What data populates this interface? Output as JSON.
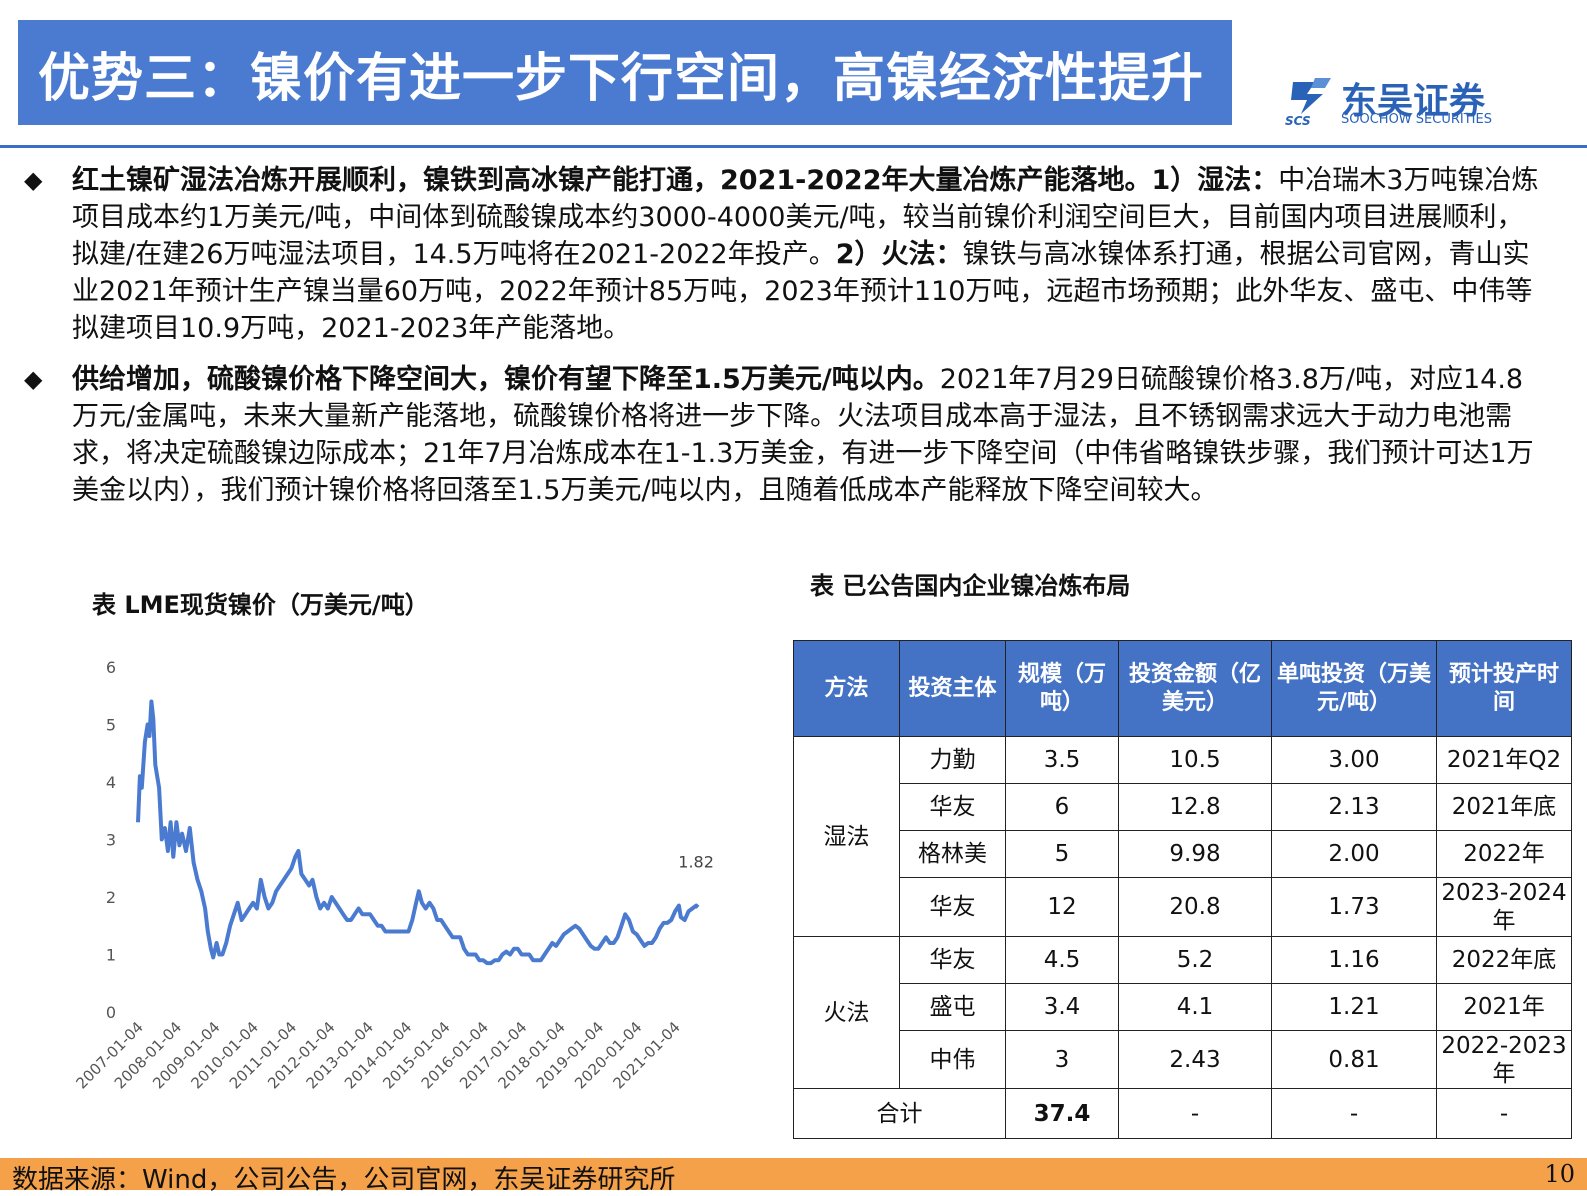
{
  "header": {
    "title": "优势三：镍价有进一步下行空间，高镍经济性提升"
  },
  "logo": {
    "cn": "东吴证券",
    "en": "SOOCHOW SECURITIES",
    "mark": "SCS",
    "icon": "scs-logo-icon"
  },
  "bullets": [
    {
      "bold": "红土镍矿湿法冶炼开展顺利，镍铁到高冰镍产能打通，2021-2022年大量冶炼产能落地。1）湿法：",
      "text1": "中冶瑞木3万吨镍冶炼项目成本约1万美元/吨，中间体到硫酸镍成本约3000-4000美元/吨，较当前镍价利润空间巨大，目前国内项目进展顺利，拟建/在建26万吨湿法项目，14.5万吨将在2021-2022年投产。",
      "bold2": "2）火法：",
      "text2": "镍铁与高冰镍体系打通，根据公司官网，青山实业2021年预计生产镍当量60万吨，2022年预计85万吨，2023年预计110万吨，远超市场预期；此外华友、盛屯、中伟等拟建项目10.9万吨，2021-2023年产能落地。"
    },
    {
      "bold": "供给增加，硫酸镍价格下降空间大，镍价有望下降至1.5万美元/吨以内。",
      "text1": "2021年7月29日硫酸镍价格3.8万/吨，对应14.8万元/金属吨，未来大量新产能落地，硫酸镍价格将进一步下降。火法项目成本高于湿法，且不锈钢需求远大于动力电池需求，将决定硫酸镍边际成本；21年7月冶炼成本在1-1.3万美金，有进一步下降空间（中伟省略镍铁步骤，我们预计可达1万美金以内），我们预计镍价格将回落至1.5万美元/吨以内，且随着低成本产能释放下降空间较大。"
    }
  ],
  "chart_data": {
    "type": "line",
    "title": "表 LME现货镍价（万美元/吨）",
    "x": [
      "2007-01-04",
      "2008-01-04",
      "2009-01-04",
      "2010-01-04",
      "2011-01-04",
      "2012-01-04",
      "2013-01-04",
      "2014-01-04",
      "2015-01-04",
      "2016-01-04",
      "2017-01-04",
      "2018-01-04",
      "2019-01-04",
      "2020-01-04",
      "2021-01-04"
    ],
    "y_ticks": [
      0,
      1,
      2,
      3,
      4,
      5,
      6
    ],
    "ylim": [
      0,
      6
    ],
    "series": [
      {
        "color": "#4a7bd0",
        "points": [
          [
            2007.0,
            3.3
          ],
          [
            2007.05,
            4.1
          ],
          [
            2007.1,
            3.9
          ],
          [
            2007.18,
            4.7
          ],
          [
            2007.25,
            5.0
          ],
          [
            2007.3,
            4.8
          ],
          [
            2007.35,
            5.4
          ],
          [
            2007.4,
            5.1
          ],
          [
            2007.45,
            4.3
          ],
          [
            2007.55,
            3.9
          ],
          [
            2007.62,
            3.0
          ],
          [
            2007.7,
            3.2
          ],
          [
            2007.78,
            2.8
          ],
          [
            2007.85,
            3.3
          ],
          [
            2007.92,
            2.7
          ],
          [
            2008.0,
            3.3
          ],
          [
            2008.08,
            2.9
          ],
          [
            2008.15,
            3.1
          ],
          [
            2008.25,
            2.8
          ],
          [
            2008.35,
            3.2
          ],
          [
            2008.45,
            2.6
          ],
          [
            2008.55,
            2.3
          ],
          [
            2008.65,
            2.1
          ],
          [
            2008.75,
            1.8
          ],
          [
            2008.82,
            1.4
          ],
          [
            2008.9,
            1.1
          ],
          [
            2008.96,
            0.95
          ],
          [
            2009.05,
            1.2
          ],
          [
            2009.12,
            1.0
          ],
          [
            2009.2,
            1.0
          ],
          [
            2009.3,
            1.2
          ],
          [
            2009.4,
            1.5
          ],
          [
            2009.5,
            1.7
          ],
          [
            2009.6,
            1.9
          ],
          [
            2009.7,
            1.6
          ],
          [
            2009.8,
            1.7
          ],
          [
            2009.9,
            1.8
          ],
          [
            2010.0,
            1.9
          ],
          [
            2010.1,
            1.8
          ],
          [
            2010.2,
            2.3
          ],
          [
            2010.3,
            2.0
          ],
          [
            2010.4,
            1.8
          ],
          [
            2010.5,
            1.9
          ],
          [
            2010.6,
            2.1
          ],
          [
            2010.7,
            2.2
          ],
          [
            2010.8,
            2.3
          ],
          [
            2010.9,
            2.4
          ],
          [
            2011.0,
            2.5
          ],
          [
            2011.1,
            2.7
          ],
          [
            2011.18,
            2.8
          ],
          [
            2011.26,
            2.4
          ],
          [
            2011.36,
            2.3
          ],
          [
            2011.46,
            2.2
          ],
          [
            2011.55,
            2.3
          ],
          [
            2011.65,
            2.0
          ],
          [
            2011.75,
            1.8
          ],
          [
            2011.85,
            1.9
          ],
          [
            2011.95,
            1.8
          ],
          [
            2012.05,
            2.0
          ],
          [
            2012.15,
            1.9
          ],
          [
            2012.25,
            1.8
          ],
          [
            2012.35,
            1.7
          ],
          [
            2012.45,
            1.6
          ],
          [
            2012.55,
            1.6
          ],
          [
            2012.65,
            1.7
          ],
          [
            2012.75,
            1.8
          ],
          [
            2012.85,
            1.7
          ],
          [
            2012.95,
            1.7
          ],
          [
            2013.05,
            1.7
          ],
          [
            2013.15,
            1.6
          ],
          [
            2013.25,
            1.5
          ],
          [
            2013.35,
            1.5
          ],
          [
            2013.45,
            1.4
          ],
          [
            2013.55,
            1.4
          ],
          [
            2013.65,
            1.4
          ],
          [
            2013.75,
            1.4
          ],
          [
            2013.85,
            1.4
          ],
          [
            2013.95,
            1.4
          ],
          [
            2014.05,
            1.4
          ],
          [
            2014.15,
            1.6
          ],
          [
            2014.25,
            1.9
          ],
          [
            2014.32,
            2.1
          ],
          [
            2014.4,
            1.9
          ],
          [
            2014.5,
            1.8
          ],
          [
            2014.6,
            1.9
          ],
          [
            2014.7,
            1.8
          ],
          [
            2014.8,
            1.6
          ],
          [
            2014.9,
            1.6
          ],
          [
            2015.0,
            1.5
          ],
          [
            2015.1,
            1.4
          ],
          [
            2015.2,
            1.3
          ],
          [
            2015.3,
            1.3
          ],
          [
            2015.4,
            1.3
          ],
          [
            2015.5,
            1.1
          ],
          [
            2015.6,
            1.0
          ],
          [
            2015.7,
            1.0
          ],
          [
            2015.8,
            1.0
          ],
          [
            2015.9,
            0.9
          ],
          [
            2016.0,
            0.9
          ],
          [
            2016.1,
            0.85
          ],
          [
            2016.2,
            0.85
          ],
          [
            2016.3,
            0.9
          ],
          [
            2016.4,
            0.9
          ],
          [
            2016.5,
            1.0
          ],
          [
            2016.6,
            1.05
          ],
          [
            2016.7,
            1.0
          ],
          [
            2016.8,
            1.1
          ],
          [
            2016.9,
            1.1
          ],
          [
            2017.0,
            1.0
          ],
          [
            2017.1,
            1.0
          ],
          [
            2017.2,
            1.0
          ],
          [
            2017.3,
            0.9
          ],
          [
            2017.4,
            0.9
          ],
          [
            2017.5,
            0.9
          ],
          [
            2017.6,
            1.0
          ],
          [
            2017.7,
            1.1
          ],
          [
            2017.8,
            1.2
          ],
          [
            2017.9,
            1.15
          ],
          [
            2018.0,
            1.25
          ],
          [
            2018.1,
            1.35
          ],
          [
            2018.2,
            1.4
          ],
          [
            2018.3,
            1.45
          ],
          [
            2018.4,
            1.5
          ],
          [
            2018.5,
            1.45
          ],
          [
            2018.6,
            1.35
          ],
          [
            2018.7,
            1.25
          ],
          [
            2018.8,
            1.15
          ],
          [
            2018.9,
            1.1
          ],
          [
            2019.0,
            1.1
          ],
          [
            2019.1,
            1.2
          ],
          [
            2019.2,
            1.3
          ],
          [
            2019.3,
            1.2
          ],
          [
            2019.4,
            1.2
          ],
          [
            2019.5,
            1.3
          ],
          [
            2019.6,
            1.5
          ],
          [
            2019.7,
            1.7
          ],
          [
            2019.8,
            1.6
          ],
          [
            2019.9,
            1.4
          ],
          [
            2020.0,
            1.35
          ],
          [
            2020.1,
            1.25
          ],
          [
            2020.2,
            1.15
          ],
          [
            2020.3,
            1.2
          ],
          [
            2020.4,
            1.2
          ],
          [
            2020.5,
            1.3
          ],
          [
            2020.6,
            1.45
          ],
          [
            2020.7,
            1.55
          ],
          [
            2020.8,
            1.55
          ],
          [
            2020.9,
            1.6
          ],
          [
            2021.0,
            1.75
          ],
          [
            2021.1,
            1.85
          ],
          [
            2021.15,
            1.65
          ],
          [
            2021.25,
            1.6
          ],
          [
            2021.35,
            1.75
          ],
          [
            2021.45,
            1.8
          ],
          [
            2021.55,
            1.85
          ],
          [
            2021.6,
            1.82
          ]
        ]
      }
    ],
    "annotation": {
      "x": 2021.6,
      "y": 1.82,
      "text": "1.82"
    }
  },
  "table": {
    "title": "表 已公告国内企业镍冶炼布局",
    "headers": [
      "方法",
      "投资主体",
      "规模（万吨）",
      "投资金额（亿美元）",
      "单吨投资（万美元/吨）",
      "预计投产时间"
    ],
    "groups": [
      {
        "method": "湿法",
        "rows": [
          [
            "力勤",
            "3.5",
            "10.5",
            "3.00",
            "2021年Q2"
          ],
          [
            "华友",
            "6",
            "12.8",
            "2.13",
            "2021年底"
          ],
          [
            "格林美",
            "5",
            "9.98",
            "2.00",
            "2022年"
          ],
          [
            "华友",
            "12",
            "20.8",
            "1.73",
            "2023-2024年"
          ]
        ]
      },
      {
        "method": "火法",
        "rows": [
          [
            "华友",
            "4.5",
            "5.2",
            "1.16",
            "2022年底"
          ],
          [
            "盛屯",
            "3.4",
            "4.1",
            "1.21",
            "2021年"
          ],
          [
            "中伟",
            "3",
            "2.43",
            "0.81",
            "2022-2023年"
          ]
        ]
      }
    ],
    "total": {
      "label": "合计",
      "scale": "37.4",
      "amount": "-",
      "unit": "-",
      "time": "-"
    }
  },
  "footer": {
    "source": "数据来源：Wind，公司公告，公司官网，东吴证券研究所",
    "page": "10"
  }
}
